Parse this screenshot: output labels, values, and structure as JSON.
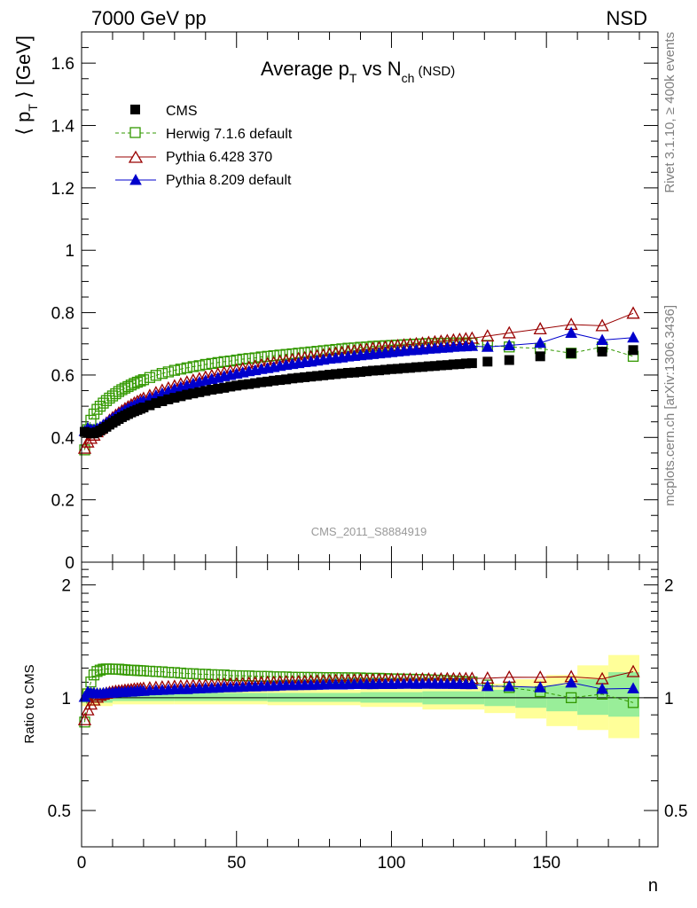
{
  "header": {
    "left": "7000 GeV pp",
    "right": "NSD"
  },
  "side_notes": {
    "rivet": "Rivet 3.1.10, ≥ 400k events",
    "mcplots": "mcplots.cern.ch [arXiv:1306.3436]"
  },
  "watermark": "CMS_2011_S8884919",
  "colors": {
    "cms": "#000000",
    "herwig": "#339900",
    "pythia6": "#990000",
    "pythia8": "#0000cc",
    "band_inner": "#99ee99",
    "band_outer": "#ffff99"
  },
  "chart_data": [
    {
      "type": "scatter",
      "title_main": "Average p",
      "title_sub1": "T",
      "title_mid": " vs N",
      "title_sub2": "ch",
      "title_tail": " (NSD)",
      "ylabel_main": "⟨ p",
      "ylabel_sub": "T",
      "ylabel_tail": " ⟩ [GeV]",
      "xlim": [
        0,
        186
      ],
      "ylim": [
        0,
        1.7
      ],
      "yticks": [
        "0",
        "0.2",
        "0.4",
        "0.6",
        "0.8",
        "1",
        "1.2",
        "1.4",
        "1.6"
      ],
      "legend_position": "top-left",
      "series": [
        {
          "name": "CMS",
          "marker": "square-filled",
          "x": [
            1,
            2,
            3,
            4,
            5,
            6,
            7,
            8,
            9,
            10,
            11,
            12,
            13,
            14,
            15,
            16,
            17,
            18,
            19,
            20,
            22,
            24,
            26,
            28,
            30,
            32,
            34,
            36,
            38,
            40,
            42,
            44,
            46,
            48,
            50,
            52,
            54,
            56,
            58,
            60,
            62,
            64,
            66,
            68,
            70,
            72,
            74,
            76,
            78,
            80,
            82,
            84,
            86,
            88,
            90,
            92,
            94,
            96,
            98,
            100,
            102,
            104,
            106,
            108,
            110,
            112,
            114,
            116,
            118,
            120,
            122,
            124,
            126,
            131,
            138,
            148,
            158,
            168,
            178
          ],
          "y": [
            0.418,
            0.415,
            0.413,
            0.413,
            0.417,
            0.422,
            0.428,
            0.434,
            0.441,
            0.447,
            0.453,
            0.459,
            0.465,
            0.47,
            0.475,
            0.48,
            0.484,
            0.488,
            0.492,
            0.496,
            0.503,
            0.51,
            0.516,
            0.522,
            0.527,
            0.532,
            0.537,
            0.541,
            0.545,
            0.549,
            0.553,
            0.556,
            0.559,
            0.563,
            0.566,
            0.569,
            0.571,
            0.574,
            0.577,
            0.579,
            0.582,
            0.584,
            0.586,
            0.589,
            0.591,
            0.593,
            0.595,
            0.597,
            0.599,
            0.601,
            0.603,
            0.605,
            0.607,
            0.608,
            0.61,
            0.612,
            0.614,
            0.615,
            0.617,
            0.619,
            0.62,
            0.622,
            0.623,
            0.625,
            0.626,
            0.628,
            0.629,
            0.631,
            0.632,
            0.634,
            0.635,
            0.637,
            0.638,
            0.643,
            0.648,
            0.66,
            0.67,
            0.675,
            0.68
          ]
        },
        {
          "name": "Herwig 7.1.6 default",
          "marker": "square-open",
          "x": [
            1,
            2,
            3,
            4,
            5,
            6,
            7,
            8,
            9,
            10,
            11,
            12,
            13,
            14,
            15,
            16,
            17,
            18,
            19,
            20,
            22,
            24,
            26,
            28,
            30,
            32,
            34,
            36,
            38,
            40,
            42,
            44,
            46,
            48,
            50,
            52,
            54,
            56,
            58,
            60,
            62,
            64,
            66,
            68,
            70,
            72,
            74,
            76,
            78,
            80,
            82,
            84,
            86,
            88,
            90,
            92,
            94,
            96,
            98,
            100,
            102,
            104,
            106,
            108,
            110,
            112,
            114,
            116,
            118,
            120,
            122,
            124,
            126,
            131,
            138,
            148,
            158,
            168,
            178
          ],
          "y": [
            0.36,
            0.425,
            0.455,
            0.475,
            0.49,
            0.5,
            0.51,
            0.518,
            0.526,
            0.533,
            0.54,
            0.547,
            0.553,
            0.558,
            0.563,
            0.568,
            0.573,
            0.577,
            0.581,
            0.585,
            0.592,
            0.599,
            0.605,
            0.61,
            0.615,
            0.619,
            0.623,
            0.627,
            0.63,
            0.634,
            0.637,
            0.64,
            0.643,
            0.645,
            0.648,
            0.651,
            0.653,
            0.655,
            0.658,
            0.66,
            0.662,
            0.664,
            0.666,
            0.668,
            0.67,
            0.672,
            0.674,
            0.676,
            0.678,
            0.68,
            0.682,
            0.684,
            0.686,
            0.687,
            0.689,
            0.69,
            0.692,
            0.693,
            0.694,
            0.695,
            0.696,
            0.697,
            0.698,
            0.699,
            0.7,
            0.701,
            0.701,
            0.702,
            0.702,
            0.703,
            0.703,
            0.703,
            0.703,
            0.695,
            0.69,
            0.685,
            0.67,
            0.69,
            0.66
          ]
        },
        {
          "name": "Pythia 6.428 370",
          "marker": "triangle-open",
          "x": [
            1,
            2,
            3,
            4,
            5,
            6,
            7,
            8,
            9,
            10,
            11,
            12,
            13,
            14,
            15,
            16,
            17,
            18,
            19,
            20,
            22,
            24,
            26,
            28,
            30,
            32,
            34,
            36,
            38,
            40,
            42,
            44,
            46,
            48,
            50,
            52,
            54,
            56,
            58,
            60,
            62,
            64,
            66,
            68,
            70,
            72,
            74,
            76,
            78,
            80,
            82,
            84,
            86,
            88,
            90,
            92,
            94,
            96,
            98,
            100,
            102,
            104,
            106,
            108,
            110,
            112,
            114,
            116,
            118,
            120,
            122,
            124,
            126,
            131,
            138,
            148,
            158,
            168,
            178
          ],
          "y": [
            0.365,
            0.385,
            0.397,
            0.407,
            0.418,
            0.428,
            0.437,
            0.446,
            0.455,
            0.463,
            0.471,
            0.478,
            0.485,
            0.492,
            0.498,
            0.504,
            0.51,
            0.515,
            0.52,
            0.525,
            0.534,
            0.543,
            0.551,
            0.558,
            0.565,
            0.571,
            0.577,
            0.583,
            0.588,
            0.593,
            0.598,
            0.603,
            0.607,
            0.612,
            0.616,
            0.62,
            0.624,
            0.628,
            0.632,
            0.636,
            0.639,
            0.643,
            0.646,
            0.649,
            0.652,
            0.655,
            0.658,
            0.661,
            0.664,
            0.667,
            0.67,
            0.672,
            0.675,
            0.677,
            0.68,
            0.682,
            0.685,
            0.687,
            0.689,
            0.692,
            0.694,
            0.696,
            0.698,
            0.7,
            0.702,
            0.704,
            0.706,
            0.708,
            0.71,
            0.712,
            0.714,
            0.716,
            0.718,
            0.725,
            0.735,
            0.748,
            0.762,
            0.758,
            0.798
          ]
        },
        {
          "name": "Pythia 8.209 default",
          "marker": "triangle-filled",
          "x": [
            1,
            2,
            3,
            4,
            5,
            6,
            7,
            8,
            9,
            10,
            11,
            12,
            13,
            14,
            15,
            16,
            17,
            18,
            19,
            20,
            22,
            24,
            26,
            28,
            30,
            32,
            34,
            36,
            38,
            40,
            42,
            44,
            46,
            48,
            50,
            52,
            54,
            56,
            58,
            60,
            62,
            64,
            66,
            68,
            70,
            72,
            74,
            76,
            78,
            80,
            82,
            84,
            86,
            88,
            90,
            92,
            94,
            96,
            98,
            100,
            102,
            104,
            106,
            108,
            110,
            112,
            114,
            116,
            118,
            120,
            122,
            124,
            126,
            131,
            138,
            148,
            158,
            168,
            178
          ],
          "y": [
            0.42,
            0.43,
            0.425,
            0.425,
            0.428,
            0.433,
            0.44,
            0.447,
            0.454,
            0.461,
            0.468,
            0.475,
            0.481,
            0.487,
            0.493,
            0.498,
            0.503,
            0.508,
            0.513,
            0.517,
            0.526,
            0.534,
            0.541,
            0.548,
            0.555,
            0.561,
            0.566,
            0.572,
            0.577,
            0.582,
            0.587,
            0.591,
            0.596,
            0.6,
            0.604,
            0.608,
            0.612,
            0.615,
            0.619,
            0.622,
            0.625,
            0.629,
            0.632,
            0.635,
            0.638,
            0.641,
            0.643,
            0.646,
            0.649,
            0.652,
            0.654,
            0.656,
            0.659,
            0.661,
            0.663,
            0.665,
            0.667,
            0.669,
            0.671,
            0.673,
            0.675,
            0.677,
            0.679,
            0.68,
            0.682,
            0.684,
            0.685,
            0.687,
            0.688,
            0.69,
            0.691,
            0.692,
            0.693,
            0.69,
            0.695,
            0.703,
            0.735,
            0.712,
            0.72
          ]
        }
      ]
    },
    {
      "type": "scatter",
      "ylabel": "Ratio to CMS",
      "xlabel": "n",
      "xlim": [
        0,
        186
      ],
      "ylim": [
        0.4,
        2.3
      ],
      "y_scale": "log",
      "yticks": [
        "0.5",
        "1",
        "2"
      ],
      "xticks": [
        "0",
        "50",
        "100",
        "150"
      ],
      "bands": {
        "x_edges": [
          0,
          10,
          30,
          60,
          90,
          110,
          130,
          140,
          150,
          160,
          170,
          180
        ],
        "inner": [
          [
            0.97,
            1.04
          ],
          [
            0.98,
            1.03
          ],
          [
            0.98,
            1.03
          ],
          [
            0.975,
            1.03
          ],
          [
            0.97,
            1.035
          ],
          [
            0.96,
            1.04
          ],
          [
            0.95,
            1.05
          ],
          [
            0.94,
            1.07
          ],
          [
            0.92,
            1.08
          ],
          [
            0.9,
            1.12
          ],
          [
            0.89,
            1.17
          ]
        ],
        "outer": [
          [
            0.95,
            1.06
          ],
          [
            0.96,
            1.05
          ],
          [
            0.96,
            1.05
          ],
          [
            0.955,
            1.05
          ],
          [
            0.945,
            1.06
          ],
          [
            0.93,
            1.07
          ],
          [
            0.91,
            1.09
          ],
          [
            0.88,
            1.12
          ],
          [
            0.84,
            1.15
          ],
          [
            0.82,
            1.22
          ],
          [
            0.78,
            1.3
          ]
        ]
      }
    }
  ]
}
